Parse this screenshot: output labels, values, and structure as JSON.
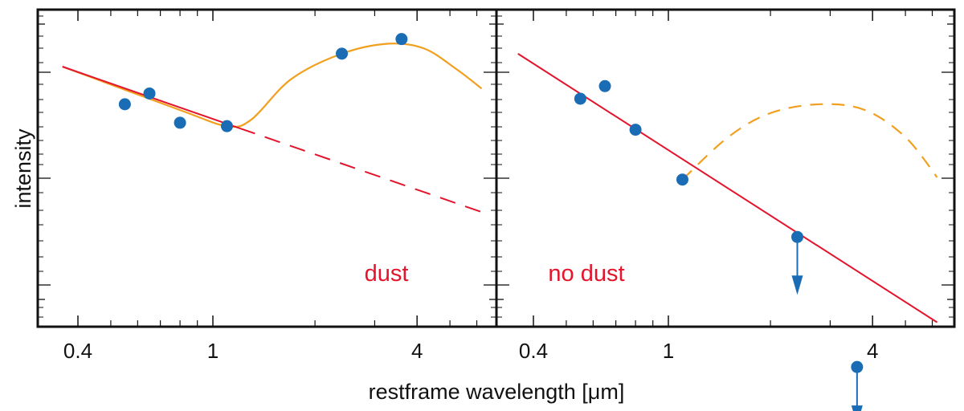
{
  "chart_data": {
    "type": "scatter",
    "ylabel": "intensity",
    "xlabel": "restframe wavelength [μm]",
    "x_scale": "log",
    "xlim": [
      0.33,
      6.2
    ],
    "y_scale": "log",
    "x_tick_labels": [
      "0.4",
      "1",
      "4"
    ],
    "colors": {
      "points": "#1a6db5",
      "red_fit": "#e3142b",
      "orange_fit": "#f0a01e",
      "frame": "#111111"
    },
    "panels": [
      {
        "annotation": "dust",
        "points": [
          {
            "x": 0.55,
            "y": 1.85
          },
          {
            "x": 0.65,
            "y": 2.05
          },
          {
            "x": 0.8,
            "y": 1.55
          },
          {
            "x": 1.1,
            "y": 1.5
          },
          {
            "x": 2.4,
            "y": 3.0
          },
          {
            "x": 3.6,
            "y": 3.45
          }
        ],
        "red_solid": [
          {
            "x": 0.36,
            "y": 2.65
          },
          {
            "x": 1.2,
            "y": 1.47
          }
        ],
        "red_dashed": [
          {
            "x": 1.2,
            "y": 1.47
          },
          {
            "x": 6.2,
            "y": 0.66
          }
        ],
        "orange_solid": [
          {
            "x": 0.36,
            "y": 2.65
          },
          {
            "x": 0.8,
            "y": 1.75
          },
          {
            "x": 1.1,
            "y": 1.5
          },
          {
            "x": 1.3,
            "y": 1.6
          },
          {
            "x": 1.7,
            "y": 2.35
          },
          {
            "x": 2.4,
            "y": 3.0
          },
          {
            "x": 3.3,
            "y": 3.3
          },
          {
            "x": 4.2,
            "y": 3.15
          },
          {
            "x": 5.2,
            "y": 2.6
          },
          {
            "x": 6.2,
            "y": 2.15
          }
        ]
      },
      {
        "annotation": "no dust",
        "points": [
          {
            "x": 0.55,
            "y": 1.95
          },
          {
            "x": 0.65,
            "y": 2.2
          },
          {
            "x": 0.8,
            "y": 1.45
          },
          {
            "x": 1.1,
            "y": 0.9
          },
          {
            "x": 2.4,
            "y": 0.52
          }
        ],
        "upper_limits": [
          {
            "x": 2.4,
            "y": 0.52
          },
          {
            "x": 3.6,
            "y": 0.15
          }
        ],
        "red_solid": [
          {
            "x": 0.36,
            "y": 3.0
          },
          {
            "x": 6.2,
            "y": 0.23
          }
        ],
        "orange_dashed": [
          {
            "x": 1.1,
            "y": 0.9
          },
          {
            "x": 1.5,
            "y": 1.35
          },
          {
            "x": 2.0,
            "y": 1.7
          },
          {
            "x": 2.8,
            "y": 1.85
          },
          {
            "x": 3.8,
            "y": 1.75
          },
          {
            "x": 5.0,
            "y": 1.35
          },
          {
            "x": 6.2,
            "y": 0.92
          }
        ]
      }
    ]
  }
}
